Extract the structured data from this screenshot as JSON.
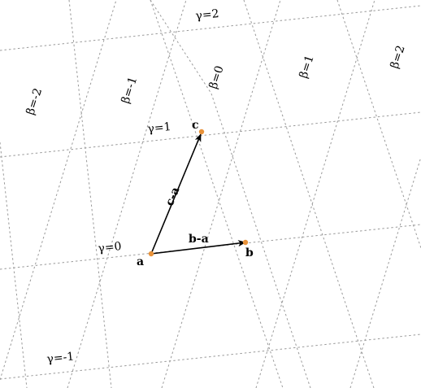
{
  "beta_labels": [
    "β=-2",
    "β=-1",
    "β=0",
    "β=1",
    "β=2"
  ],
  "gamma_labels": [
    "γ=2",
    "γ=1",
    "γ=0",
    "γ=-1"
  ],
  "points": {
    "a": "a",
    "b": "b",
    "c": "c"
  },
  "vectors": {
    "b_minus_a": "b-a",
    "c_minus_a": "c-a"
  },
  "colors": {
    "point": "#e8923a",
    "grid": "#9a9a9a",
    "vector": "#000000"
  }
}
